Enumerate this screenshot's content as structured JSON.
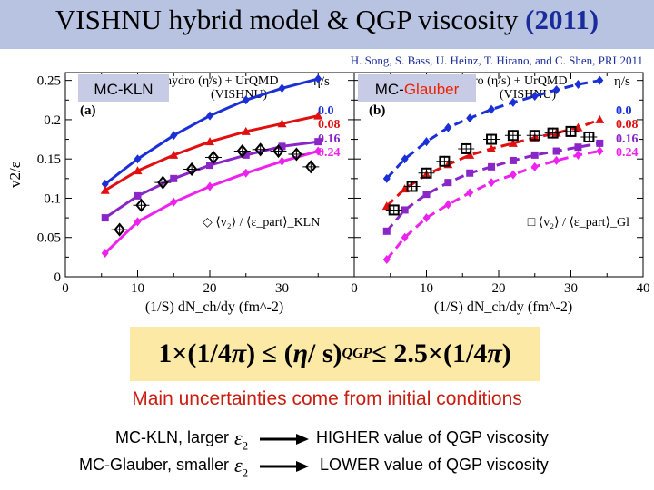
{
  "slide": {
    "title_main": "VISHNU hybrid model  &  QGP viscosity ",
    "title_year": "(2011)",
    "citation": "H. Song, S. Bass, U. Heinz, T. Hirano, and  C. Shen, PRL2011"
  },
  "formula": {
    "lhs": "1×(1",
    "lhs_frac": "/4",
    "lhs_pi": "π",
    "lhs_close": ") ≤ (",
    "eta": "η",
    "slash_s": " / s)",
    "sub": "QGP",
    "rhs": " ≤ 2.5×(1",
    "rhs_frac": "/4",
    "rhs_pi": "π",
    "rhs_close": ")"
  },
  "conclusion": {
    "headline": "Main uncertainties come from initial conditions",
    "kln_label": "MC-KLN, larger",
    "kln_result": "HIGHER value of QGP viscosity",
    "glauber_label": "MC-Glauber, smaller",
    "glauber_result": "LOWER value of QGP viscosity",
    "epsilon_symbol": "ε",
    "epsilon_sub": "2"
  },
  "colors": {
    "title_bar": "#b7c3e0",
    "title_year": "#1a2c9c",
    "series_00": "#1a2fd6",
    "series_008": "#e01010",
    "series_016": "#8a25c8",
    "series_024": "#ee22ee",
    "formula_bg": "#fde9a6",
    "headline": "#c81d10",
    "glauber_text": "#ee2200"
  },
  "chart_data": [
    {
      "type": "line",
      "panel_label": "(a)",
      "badge": "MC-KLN",
      "legend_title": "hydro (η/s) + UrQMD",
      "legend_subtitle": "(VISHNU)",
      "legend_header": "η/s",
      "data_label": "◇  ⟨v₂⟩ / ⟨ε_part⟩_KLN",
      "xlim": [
        0,
        40
      ],
      "ylim": [
        0,
        0.26
      ],
      "xticks": [
        0,
        10,
        20,
        30
      ],
      "yticks": [
        0,
        0.05,
        0.1,
        0.15,
        0.2,
        0.25
      ],
      "ytick_labels": [
        "0",
        "0.05",
        "0.1",
        "0.15",
        "0.2",
        "0.25"
      ],
      "xlabel": "(1/S) dN_ch/dy (fm^-2)",
      "ylabel": "v2/ε",
      "line_style": "solid",
      "series": [
        {
          "name": "0.0",
          "color": "#1a2fd6",
          "marker": "diamond",
          "x": [
            5.5,
            10,
            15,
            20,
            25,
            30,
            35
          ],
          "y": [
            0.118,
            0.15,
            0.18,
            0.205,
            0.225,
            0.24,
            0.252
          ]
        },
        {
          "name": "0.08",
          "color": "#e01010",
          "marker": "triangle",
          "x": [
            5.5,
            10,
            15,
            20,
            25,
            30,
            35
          ],
          "y": [
            0.11,
            0.135,
            0.155,
            0.172,
            0.185,
            0.195,
            0.205
          ]
        },
        {
          "name": "0.16",
          "color": "#8a25c8",
          "marker": "square",
          "x": [
            5.5,
            10,
            15,
            20,
            25,
            30,
            35
          ],
          "y": [
            0.075,
            0.103,
            0.125,
            0.142,
            0.155,
            0.166,
            0.172
          ]
        },
        {
          "name": "0.24",
          "color": "#ee22ee",
          "marker": "diamond",
          "x": [
            5.5,
            10,
            15,
            20,
            25,
            30,
            35
          ],
          "y": [
            0.03,
            0.07,
            0.095,
            0.115,
            0.132,
            0.147,
            0.16
          ]
        }
      ],
      "data_points": {
        "marker": "open-diamond",
        "x": [
          7.5,
          10.5,
          13.5,
          17.5,
          20.5,
          24.5,
          27,
          29.5,
          32,
          34
        ],
        "y": [
          0.06,
          0.091,
          0.12,
          0.137,
          0.152,
          0.16,
          0.162,
          0.16,
          0.156,
          0.14
        ]
      }
    },
    {
      "type": "line",
      "panel_label": "(b)",
      "badge": "MC-Glauber",
      "legend_title": "hydro (η/s) + UrQMD",
      "legend_subtitle": "(VISHNU)",
      "legend_header": "η/s",
      "data_label": "□  ⟨v₂⟩ / ⟨ε_part⟩_Gl",
      "xlim": [
        0,
        40
      ],
      "ylim": [
        0,
        0.26
      ],
      "xticks": [
        0,
        10,
        20,
        30,
        40
      ],
      "xlabel": "(1/S) dN_ch/dy (fm^-2)",
      "line_style": "dashed",
      "series": [
        {
          "name": "0.0",
          "color": "#1a2fd6",
          "marker": "diamond",
          "x": [
            4.5,
            7,
            10,
            13,
            16,
            19,
            22,
            25,
            28,
            31,
            34
          ],
          "y": [
            0.125,
            0.15,
            0.172,
            0.19,
            0.202,
            0.213,
            0.222,
            0.23,
            0.238,
            0.245,
            0.25
          ]
        },
        {
          "name": "0.08",
          "color": "#e01010",
          "marker": "triangle",
          "x": [
            4.5,
            7,
            10,
            13,
            16,
            19,
            22,
            25,
            28,
            31,
            34
          ],
          "y": [
            0.09,
            0.112,
            0.13,
            0.143,
            0.155,
            0.163,
            0.17,
            0.177,
            0.183,
            0.19,
            0.2
          ]
        },
        {
          "name": "0.16",
          "color": "#8a25c8",
          "marker": "square",
          "x": [
            4.5,
            7,
            10,
            13,
            16,
            19,
            22,
            25,
            28,
            31,
            34
          ],
          "y": [
            0.058,
            0.085,
            0.105,
            0.12,
            0.132,
            0.14,
            0.148,
            0.155,
            0.16,
            0.165,
            0.17
          ]
        },
        {
          "name": "0.24",
          "color": "#ee22ee",
          "marker": "diamond",
          "x": [
            4.5,
            7,
            10,
            13,
            16,
            19,
            22,
            25,
            28,
            31,
            34
          ],
          "y": [
            0.022,
            0.05,
            0.075,
            0.092,
            0.107,
            0.12,
            0.13,
            0.14,
            0.148,
            0.155,
            0.16
          ]
        }
      ],
      "data_points": {
        "marker": "open-square",
        "x": [
          5.5,
          8,
          10,
          12.5,
          15.5,
          19,
          22,
          25,
          27.5,
          30,
          32.5
        ],
        "y": [
          0.085,
          0.115,
          0.132,
          0.147,
          0.163,
          0.175,
          0.18,
          0.18,
          0.183,
          0.185,
          0.178
        ]
      }
    }
  ]
}
